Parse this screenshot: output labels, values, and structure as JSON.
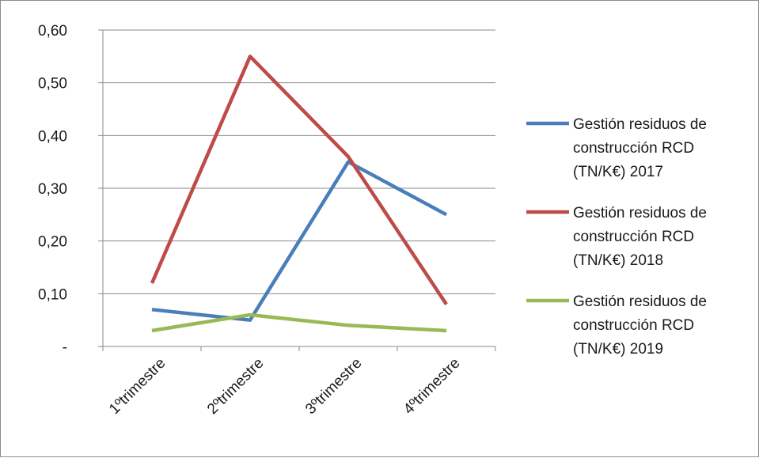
{
  "chart_data": {
    "type": "line",
    "categories": [
      "1ºtrimestre",
      "2ºtrimestre",
      "3ºtrimestre",
      "4ºtrimestre"
    ],
    "ylim": [
      0,
      0.6
    ],
    "yticks": [
      0,
      0.1,
      0.2,
      0.3,
      0.4,
      0.5,
      0.6
    ],
    "ytick_labels": [
      "-",
      "0,10",
      "0,20",
      "0,30",
      "0,40",
      "0,50",
      "0,60"
    ],
    "grid": true,
    "legend_position": "right",
    "series": [
      {
        "name": "Gestión residuos de construcción RCD (TN/K€) 2017",
        "legend_lines": [
          "Gestión residuos de",
          "construcción RCD",
          "(TN/K€) 2017"
        ],
        "color": "#4a7ebb",
        "values": [
          0.07,
          0.05,
          0.35,
          0.25
        ]
      },
      {
        "name": "Gestión residuos de construcción RCD (TN/K€) 2018",
        "legend_lines": [
          "Gestión residuos de",
          "construcción RCD",
          "(TN/K€) 2018"
        ],
        "color": "#be4b48",
        "values": [
          0.12,
          0.55,
          0.36,
          0.08
        ]
      },
      {
        "name": "Gestión residuos de construcción RCD (TN/K€) 2019",
        "legend_lines": [
          "Gestión residuos de",
          "construcción RCD",
          "(TN/K€) 2019"
        ],
        "color": "#98b954",
        "values": [
          0.03,
          0.06,
          0.04,
          0.03
        ]
      }
    ]
  }
}
